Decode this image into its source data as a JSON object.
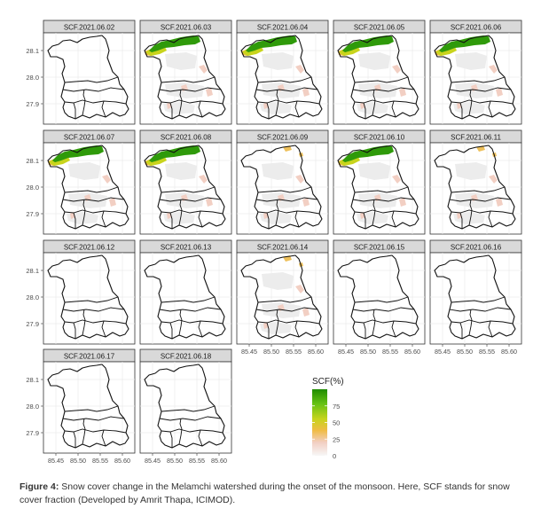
{
  "chart_data": {
    "type": "heatmap",
    "facet_titles": [
      "SCF.2021.06.02",
      "SCF.2021.06.03",
      "SCF.2021.06.04",
      "SCF.2021.06.05",
      "SCF.2021.06.06",
      "SCF.2021.06.07",
      "SCF.2021.06.08",
      "SCF.2021.06.09",
      "SCF.2021.06.10",
      "SCF.2021.06.11",
      "SCF.2021.06.12",
      "SCF.2021.06.13",
      "SCF.2021.06.14",
      "SCF.2021.06.15",
      "SCF.2021.06.16",
      "SCF.2021.06.17",
      "SCF.2021.06.18"
    ],
    "snow_level": [
      0,
      3,
      3,
      3,
      3,
      3,
      3,
      1,
      3,
      1,
      0,
      0,
      1,
      0,
      0,
      0,
      0
    ],
    "x_ticks": [
      "85.45",
      "85.50",
      "85.55",
      "85.60"
    ],
    "y_ticks": [
      "28.1",
      "28.0",
      "27.9"
    ],
    "legend": {
      "title": "SCF(%)",
      "ticks": [
        "75",
        "50",
        "25",
        "0"
      ],
      "tick_values": [
        75,
        50,
        25,
        0
      ],
      "range": [
        0,
        100
      ],
      "colors": [
        "#1e8c00",
        "#66c214",
        "#c8d41c",
        "#f0bc46",
        "#f2cfc3",
        "#f7f7f7"
      ]
    }
  },
  "caption": {
    "label": "Figure 4:",
    "text": " Snow cover change in the Melamchi watershed during the onset of the monsoon. Here, SCF stands for snow cover fraction (Developed by Amrit Thapa, ICIMOD)."
  }
}
